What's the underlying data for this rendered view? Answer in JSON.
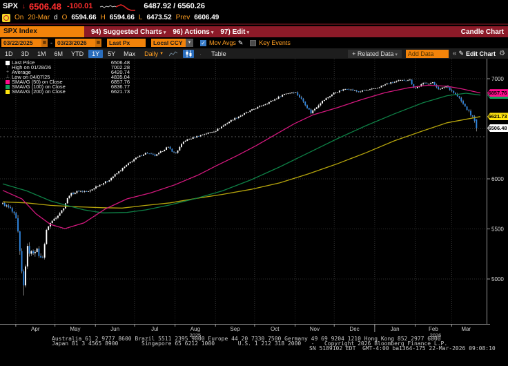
{
  "quote": {
    "ticker": "SPX",
    "direction_icon": "down-arrow",
    "last": "6506.48",
    "change": "-100.01",
    "bid_ask": "6487.92 / 6560.26",
    "session": {
      "on_label": "On",
      "date": "20-Mar",
      "freq": "d",
      "o_label": "O",
      "open": "6594.66",
      "h_label": "H",
      "high": "6594.66",
      "l_label": "L",
      "low": "6473.52",
      "prev_label": "Prev",
      "prev": "6606.49"
    }
  },
  "menubar": {
    "security": "SPX Index",
    "items": [
      {
        "label": "94) Suggested Charts"
      },
      {
        "label": "96) Actions"
      },
      {
        "label": "97) Edit"
      }
    ],
    "right": "Candle Chart"
  },
  "toolbar": {
    "date_from": "03/22/2025",
    "date_sep": "-",
    "date_to": "03/23/2026",
    "price_field": "Last Px",
    "currency": "Local CCY",
    "mov_avgs_label": "Mov Avgs",
    "key_events_label": "Key Events"
  },
  "tabstrip": {
    "ranges": [
      "1D",
      "3D",
      "1M",
      "6M",
      "YTD",
      "1Y",
      "5Y",
      "Max"
    ],
    "selected": "1Y",
    "period": "Daily",
    "table_label": "Table",
    "related_label": "+ Related Data",
    "add_data_placeholder": "Add Data",
    "collapse_label": "«",
    "edit_chart_label": "Edit Chart"
  },
  "legend": {
    "rows": [
      {
        "icon": "last-price-marker",
        "color": "#ffffff",
        "label": "Last Price",
        "value": "6506.48"
      },
      {
        "icon": "high-marker",
        "glyph": "⊤",
        "label": "High on 01/28/26",
        "value": "7002.28"
      },
      {
        "icon": "average-marker",
        "glyph": "+",
        "label": "Average",
        "value": "6420.74"
      },
      {
        "icon": "low-marker",
        "glyph": "⊥",
        "label": "Low on 04/07/25",
        "value": "4835.04"
      },
      {
        "icon": "sma-swatch",
        "color": "#ff0a8c",
        "label": "SMAVG (50)  on Close",
        "value": "6857.76"
      },
      {
        "icon": "sma-swatch",
        "color": "#11a05c",
        "label": "SMAVG (100)  on Close",
        "value": "6836.77"
      },
      {
        "icon": "sma-swatch",
        "color": "#ffe40f",
        "label": "SMAVG (200)  on Close",
        "value": "6621.73"
      }
    ]
  },
  "axis": {
    "y_gridlines": [
      7000,
      6500,
      6000,
      5500,
      5000
    ],
    "y_ticks": [
      {
        "label": "7000",
        "value": 7000
      },
      {
        "label": "6000",
        "value": 6000
      },
      {
        "label": "5500",
        "value": 5500
      },
      {
        "label": "5000",
        "value": 5000
      }
    ],
    "badges": [
      {
        "value": 6836.77,
        "label": "6836.77",
        "color": "#11a05c"
      },
      {
        "value": 6857.76,
        "label": "6857.76",
        "color": "#ff0a8c"
      },
      {
        "value": 6621.73,
        "label": "6621.73",
        "color": "#ffe40f"
      },
      {
        "value": 6506.48,
        "label": "6506.48",
        "color": "#ffffff"
      }
    ],
    "months": [
      {
        "label": "Apr",
        "t": 0.0273
      },
      {
        "label": "May",
        "t": 0.1093
      },
      {
        "label": "Jun",
        "t": 0.194
      },
      {
        "label": "Jul",
        "t": 0.276
      },
      {
        "label": "Aug",
        "t": 0.3607
      },
      {
        "label": "Sep",
        "t": 0.4454
      },
      {
        "label": "Oct",
        "t": 0.5273
      },
      {
        "label": "Nov",
        "t": 0.612
      },
      {
        "label": "Dec",
        "t": 0.694
      },
      {
        "label": "Jan",
        "t": 0.7787
      },
      {
        "label": "Feb",
        "t": 0.8634
      },
      {
        "label": "Mar",
        "t": 0.9399
      }
    ],
    "years": [
      {
        "label": "2025",
        "t": 0.403
      },
      {
        "label": "2026",
        "t": 0.906
      }
    ]
  },
  "chart_data": {
    "type": "candlestick",
    "title": "SPX Index 1Y Daily Candle Chart",
    "x_range": [
      "03/22/2025",
      "03/23/2026"
    ],
    "ylim": [
      4550,
      7050
    ],
    "bar_count": 250,
    "last_t": 0.9918,
    "last_bar": {
      "open": 6594.66,
      "high": 6594.66,
      "low": 6473.52,
      "close": 6506.48
    },
    "high_marker": {
      "date": "01/28/26",
      "value": 7002.28,
      "t": 0.852
    },
    "low_marker": {
      "date": "04/07/25",
      "value": 4835.04,
      "t": 0.0437
    },
    "average": 6420.74,
    "colors": {
      "up": "#ffffff",
      "down": "#2f86e0",
      "wick": "#b0b0b0"
    },
    "close_path": [
      [
        0.0,
        5752,
        38
      ],
      [
        0.016,
        5700,
        45
      ],
      [
        0.027,
        5620,
        55
      ],
      [
        0.033,
        5420,
        95
      ],
      [
        0.038,
        5120,
        130
      ],
      [
        0.0437,
        4920,
        150
      ],
      [
        0.047,
        4990,
        140
      ],
      [
        0.0492,
        5430,
        130
      ],
      [
        0.052,
        5290,
        110
      ],
      [
        0.06,
        5260,
        90
      ],
      [
        0.07,
        5300,
        80
      ],
      [
        0.082,
        5180,
        80
      ],
      [
        0.093,
        5520,
        60
      ],
      [
        0.109,
        5610,
        45
      ],
      [
        0.125,
        5690,
        40
      ],
      [
        0.139,
        5840,
        35
      ],
      [
        0.16,
        5880,
        30
      ],
      [
        0.18,
        5870,
        30
      ],
      [
        0.194,
        5920,
        28
      ],
      [
        0.22,
        5980,
        26
      ],
      [
        0.25,
        6100,
        26
      ],
      [
        0.276,
        6200,
        24
      ],
      [
        0.3,
        6260,
        22
      ],
      [
        0.32,
        6230,
        26
      ],
      [
        0.345,
        6320,
        22
      ],
      [
        0.361,
        6250,
        30
      ],
      [
        0.38,
        6380,
        22
      ],
      [
        0.41,
        6430,
        22
      ],
      [
        0.445,
        6480,
        22
      ],
      [
        0.48,
        6590,
        22
      ],
      [
        0.51,
        6660,
        22
      ],
      [
        0.527,
        6700,
        22
      ],
      [
        0.56,
        6770,
        24
      ],
      [
        0.59,
        6850,
        24
      ],
      [
        0.612,
        6870,
        26
      ],
      [
        0.63,
        6770,
        34
      ],
      [
        0.645,
        6660,
        38
      ],
      [
        0.665,
        6760,
        30
      ],
      [
        0.694,
        6860,
        24
      ],
      [
        0.72,
        6900,
        22
      ],
      [
        0.745,
        6870,
        24
      ],
      [
        0.779,
        6900,
        22
      ],
      [
        0.805,
        6950,
        22
      ],
      [
        0.83,
        6980,
        22
      ],
      [
        0.852,
        6990,
        22
      ],
      [
        0.862,
        6900,
        30
      ],
      [
        0.88,
        6950,
        26
      ],
      [
        0.9,
        6960,
        26
      ],
      [
        0.915,
        6890,
        30
      ],
      [
        0.928,
        6930,
        28
      ],
      [
        0.94,
        6880,
        30
      ],
      [
        0.955,
        6810,
        34
      ],
      [
        0.968,
        6720,
        38
      ],
      [
        0.98,
        6640,
        42
      ],
      [
        0.988,
        6590,
        45
      ],
      [
        0.9918,
        6506.48,
        50
      ]
    ],
    "sma50": {
      "name": "SMAVG (50) on Close",
      "last": 6857.76,
      "color": "#d4187e",
      "points": [
        [
          0,
          5885
        ],
        [
          0.04,
          5800
        ],
        [
          0.07,
          5650
        ],
        [
          0.1,
          5545
        ],
        [
          0.13,
          5503
        ],
        [
          0.17,
          5560
        ],
        [
          0.215,
          5700
        ],
        [
          0.26,
          5800
        ],
        [
          0.31,
          5860
        ],
        [
          0.36,
          5940
        ],
        [
          0.41,
          6040
        ],
        [
          0.447,
          6130
        ],
        [
          0.49,
          6230
        ],
        [
          0.53,
          6330
        ],
        [
          0.57,
          6440
        ],
        [
          0.61,
          6550
        ],
        [
          0.65,
          6640
        ],
        [
          0.7,
          6710
        ],
        [
          0.75,
          6790
        ],
        [
          0.8,
          6860
        ],
        [
          0.85,
          6910
        ],
        [
          0.89,
          6935
        ],
        [
          0.93,
          6925
        ],
        [
          0.96,
          6900
        ],
        [
          1.0,
          6857.76
        ]
      ]
    },
    "sma100": {
      "name": "SMAVG (100) on Close",
      "last": 6836.77,
      "color": "#0e8046",
      "points": [
        [
          0,
          5950
        ],
        [
          0.05,
          5880
        ],
        [
          0.1,
          5780
        ],
        [
          0.13,
          5740
        ],
        [
          0.17,
          5690
        ],
        [
          0.21,
          5660
        ],
        [
          0.26,
          5665
        ],
        [
          0.3,
          5690
        ],
        [
          0.35,
          5740
        ],
        [
          0.405,
          5805
        ],
        [
          0.46,
          5880
        ],
        [
          0.52,
          5990
        ],
        [
          0.58,
          6120
        ],
        [
          0.64,
          6260
        ],
        [
          0.7,
          6400
        ],
        [
          0.76,
          6530
        ],
        [
          0.82,
          6650
        ],
        [
          0.88,
          6760
        ],
        [
          0.93,
          6830
        ],
        [
          0.97,
          6855
        ],
        [
          1.0,
          6836.77
        ]
      ]
    },
    "sma200": {
      "name": "SMAVG (200) on Close",
      "last": 6621.73,
      "color": "#b5a40c",
      "points": [
        [
          0,
          5770
        ],
        [
          0.05,
          5760
        ],
        [
          0.1,
          5735
        ],
        [
          0.15,
          5722
        ],
        [
          0.21,
          5712
        ],
        [
          0.25,
          5708
        ],
        [
          0.3,
          5735
        ],
        [
          0.35,
          5760
        ],
        [
          0.405,
          5805
        ],
        [
          0.46,
          5845
        ],
        [
          0.52,
          5895
        ],
        [
          0.58,
          5960
        ],
        [
          0.64,
          6050
        ],
        [
          0.7,
          6150
        ],
        [
          0.76,
          6260
        ],
        [
          0.82,
          6380
        ],
        [
          0.88,
          6480
        ],
        [
          0.93,
          6560
        ],
        [
          1.0,
          6621.73
        ]
      ]
    }
  },
  "footer": {
    "line1": "Australia 61 2 9777 8600 Brazil 5511 2395 9000 Europe 44 20 7330 7500 Germany 49 69 9204 1210 Hong Kong 852 2977 6000",
    "line2": "Japan 81 3 4565 8900       Singapore 65 6212 1000       U.S. 1 212 318 2000   -   Copyright 2026 Bloomberg Finance L.P.",
    "line3": "SN 5189102 EDT  GMT-4:00 ba1364-175 22-Mar-2026 09:08:10"
  }
}
